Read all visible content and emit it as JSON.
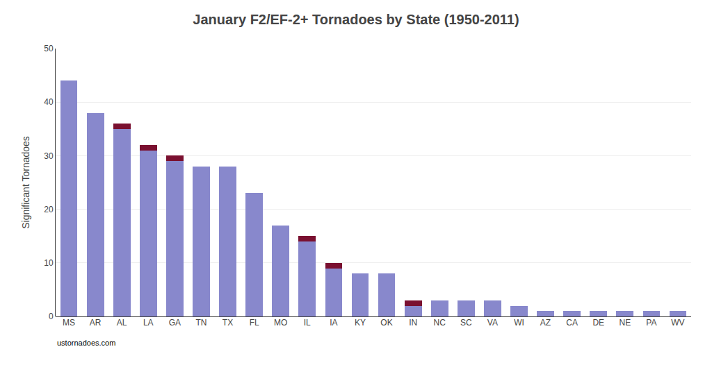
{
  "chart_data": {
    "type": "bar",
    "title": "January F2/EF-2+ Tornadoes by State (1950-2011)",
    "ylabel": "Significant Tornadoes",
    "categories": [
      "MS",
      "AR",
      "AL",
      "LA",
      "GA",
      "TN",
      "TX",
      "FL",
      "MO",
      "IL",
      "IA",
      "KY",
      "OK",
      "IN",
      "NC",
      "SC",
      "VA",
      "WI",
      "AZ",
      "CA",
      "DE",
      "NE",
      "PA",
      "WV"
    ],
    "series": [
      {
        "color": "#8888cc",
        "values": [
          44,
          38,
          35,
          31,
          29,
          28,
          28,
          23,
          17,
          14,
          9,
          8,
          8,
          2,
          3,
          3,
          3,
          2,
          1,
          1,
          1,
          1,
          1,
          1
        ]
      },
      {
        "color": "#7a1030",
        "values": [
          0,
          0,
          1,
          1,
          1,
          0,
          0,
          0,
          0,
          1,
          1,
          0,
          0,
          1,
          0,
          0,
          0,
          0,
          0,
          0,
          0,
          0,
          0,
          0
        ]
      }
    ],
    "stacked": true,
    "ylim": [
      0,
      50
    ],
    "yticks": [
      0,
      10,
      20,
      30,
      40,
      50
    ],
    "grid": true,
    "annotations": [
      "ustornadoes.com"
    ]
  }
}
